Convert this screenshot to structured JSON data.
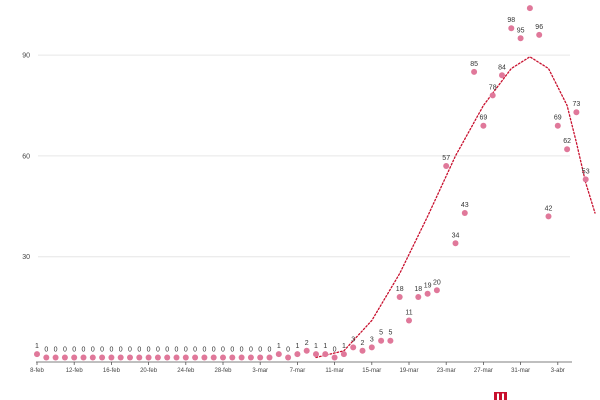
{
  "chart_data": {
    "type": "scatter",
    "title": "",
    "xlabel": "",
    "ylabel": "",
    "ylim": [
      0,
      100
    ],
    "yticks": [
      30,
      60,
      90
    ],
    "x_tick_labels": [
      "8-feb",
      "12-feb",
      "16-feb",
      "20-feb",
      "24-feb",
      "28-feb",
      "3-mar",
      "7-mar",
      "11-mar",
      "15-mar",
      "19-mar",
      "23-mar",
      "27-mar",
      "31-mar",
      "3-abr"
    ],
    "x_tick_days": [
      0,
      4,
      8,
      12,
      16,
      20,
      24,
      28,
      32,
      36,
      40,
      44,
      48,
      52,
      56
    ],
    "series": [
      {
        "values": [
          1,
          0,
          0,
          0,
          0,
          0,
          0,
          0,
          0,
          0,
          0,
          0,
          0,
          0,
          0,
          0,
          0,
          0,
          0,
          0,
          0,
          0,
          0,
          0,
          0,
          0,
          1,
          0,
          1,
          2,
          1,
          1,
          0,
          1,
          3,
          2,
          3,
          5,
          5,
          18,
          11,
          18,
          19,
          20,
          57,
          34,
          43,
          85,
          69,
          78,
          84,
          98,
          95,
          104,
          96,
          42,
          69,
          62,
          73,
          53
        ],
        "labels": [
          "1",
          "0",
          "0",
          "0",
          "0",
          "0",
          "0",
          "0",
          "0",
          "0",
          "0",
          "0",
          "0",
          "0",
          "0",
          "0",
          "0",
          "0",
          "0",
          "0",
          "0",
          "0",
          "0",
          "0",
          "0",
          "0",
          "1",
          "0",
          "1",
          "2",
          "1",
          "1",
          "0",
          "1",
          "3",
          "2",
          "3",
          "5",
          "5",
          "18",
          "11",
          "18",
          "19",
          "20",
          "57",
          "34",
          "43",
          "85",
          "69",
          "78",
          "84",
          "98",
          "95",
          "",
          "96",
          "42",
          "69",
          "62",
          "73",
          "53"
        ]
      }
    ],
    "trendline": {
      "style": "dotted",
      "type": "polynomial"
    },
    "colors": {
      "points": "#e0789a",
      "trend": "#c8102e",
      "grid": "#e6e6e6",
      "axis": "#555555"
    }
  },
  "logo": {
    "name": "newspaper-logo"
  }
}
